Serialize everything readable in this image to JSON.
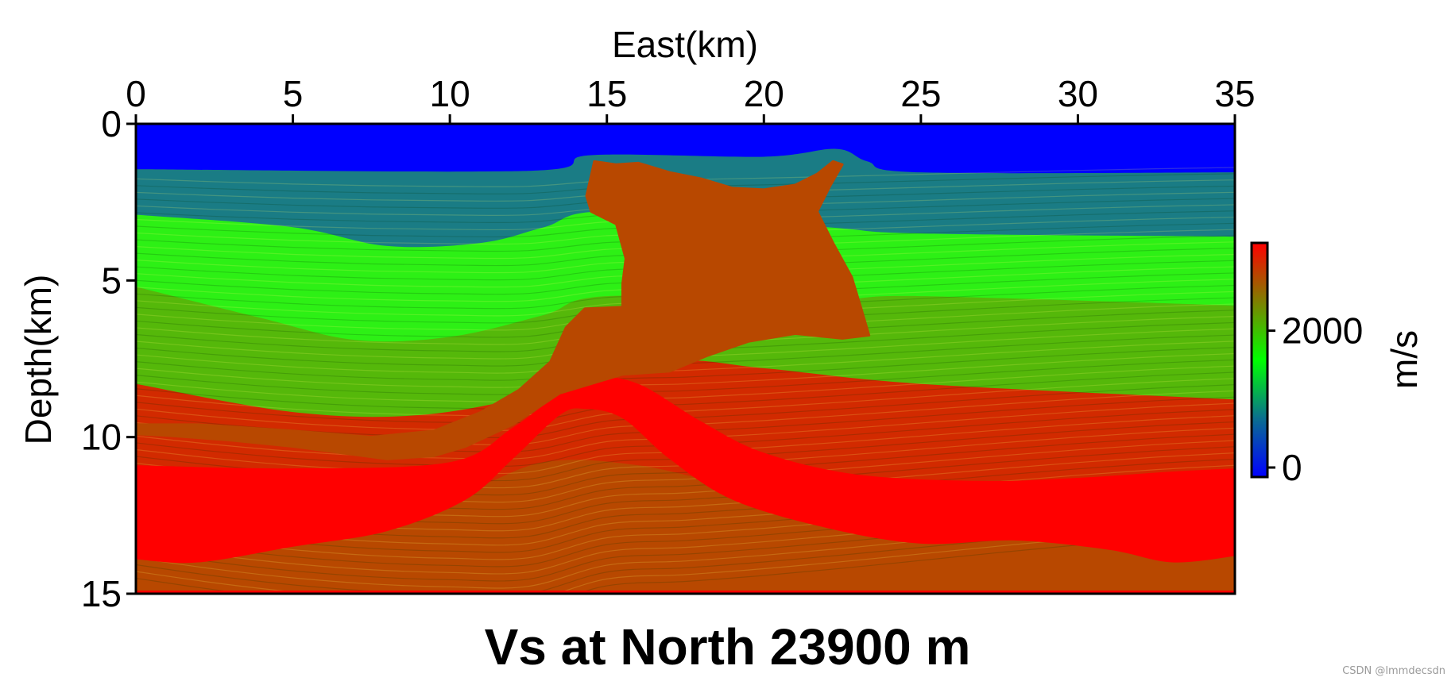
{
  "chart_data": {
    "type": "heatmap",
    "title": "Vs at North 23900 m",
    "xlabel": "East(km)",
    "ylabel": "Depth(km)",
    "xlim": [
      0,
      35
    ],
    "ylim": [
      0,
      15
    ],
    "y_inverted": true,
    "x_axis_position": "top",
    "x_ticks": [
      0,
      5,
      10,
      15,
      20,
      25,
      30,
      35
    ],
    "y_ticks": [
      0,
      5,
      10,
      15
    ],
    "colorbar": {
      "label": "m/s",
      "ticks": [
        0,
        2000
      ],
      "range": [
        0,
        3200
      ],
      "colormap": [
        {
          "value": 0,
          "color": "#0000ff"
        },
        {
          "value": 800,
          "color": "#0a6f90"
        },
        {
          "value": 1600,
          "color": "#00ff00"
        },
        {
          "value": 2400,
          "color": "#7f7f00"
        },
        {
          "value": 3200,
          "color": "#ff0000"
        }
      ]
    },
    "layers": [
      {
        "name_hint": "water",
        "vs": 0,
        "color": "#0000ff",
        "bottom": [
          [
            0,
            1.45
          ],
          [
            12.5,
            1.5
          ],
          [
            14.5,
            1.0
          ],
          [
            20,
            1.05
          ],
          [
            22.3,
            0.8
          ],
          [
            23.3,
            1.2
          ],
          [
            25,
            1.55
          ],
          [
            35,
            1.55
          ]
        ]
      },
      {
        "vs": 900,
        "color": "#1a7c85",
        "bottom": [
          [
            0,
            2.9
          ],
          [
            5,
            3.3
          ],
          [
            8,
            3.9
          ],
          [
            11,
            3.8
          ],
          [
            13,
            3.3
          ],
          [
            15,
            2.8
          ],
          [
            22,
            3.3
          ],
          [
            25,
            3.5
          ],
          [
            35,
            3.6
          ]
        ]
      },
      {
        "vs": 1600,
        "color": "#2df015",
        "bottom": [
          [
            0,
            5.2
          ],
          [
            4,
            6.2
          ],
          [
            7,
            6.9
          ],
          [
            10,
            6.8
          ],
          [
            13,
            6.1
          ],
          [
            15,
            5.5
          ],
          [
            22,
            5.6
          ],
          [
            25,
            5.5
          ],
          [
            35,
            5.8
          ]
        ]
      },
      {
        "vs": 2000,
        "color": "#55b80a",
        "bottom": [
          [
            0,
            8.3
          ],
          [
            5,
            9.2
          ],
          [
            9,
            9.3
          ],
          [
            13,
            8.6
          ],
          [
            17,
            7.6
          ],
          [
            20,
            7.8
          ],
          [
            25,
            8.3
          ],
          [
            35,
            8.8
          ]
        ]
      },
      {
        "vs": 2400,
        "color": "#d22a00",
        "bottom": [
          [
            0,
            11.4
          ],
          [
            5,
            12.0
          ],
          [
            10,
            11.8
          ],
          [
            13,
            10.8
          ],
          [
            16,
            10.9
          ],
          [
            20,
            11.7
          ],
          [
            25,
            11.8
          ],
          [
            30,
            11.6
          ],
          [
            35,
            11.8
          ]
        ]
      }
    ],
    "high_velocity_band": {
      "vs": 3200,
      "color": "#ff0000",
      "top": [
        [
          0,
          10.9
        ],
        [
          5,
          11.0
        ],
        [
          10,
          10.8
        ],
        [
          12,
          9.7
        ],
        [
          13.5,
          8.6
        ],
        [
          14.5,
          8.1
        ],
        [
          16,
          8.3
        ],
        [
          18,
          9.5
        ],
        [
          20,
          10.5
        ],
        [
          23,
          11.2
        ],
        [
          27,
          11.4
        ],
        [
          30,
          11.3
        ],
        [
          33,
          11.1
        ],
        [
          35,
          11.0
        ]
      ],
      "bottom": [
        [
          0,
          13.9
        ],
        [
          2,
          14.0
        ],
        [
          5,
          13.5
        ],
        [
          8,
          13.0
        ],
        [
          10.5,
          12.0
        ],
        [
          12,
          10.7
        ],
        [
          13.5,
          9.3
        ],
        [
          14.3,
          9.1
        ],
        [
          15.5,
          9.4
        ],
        [
          17,
          10.7
        ],
        [
          19,
          12.0
        ],
        [
          22,
          12.9
        ],
        [
          25,
          13.4
        ],
        [
          28,
          13.3
        ],
        [
          31,
          13.6
        ],
        [
          33,
          14.0
        ],
        [
          35,
          13.8
        ]
      ]
    },
    "basement": {
      "vs": 2800,
      "color": "#b84800",
      "top_bottom_km": 15
    },
    "salt_body": {
      "vs": 2800,
      "color": "#b84800",
      "outline": [
        [
          14.6,
          1.2
        ],
        [
          15.3,
          1.3
        ],
        [
          16,
          1.25
        ],
        [
          17,
          1.55
        ],
        [
          18,
          1.75
        ],
        [
          19,
          2.05
        ],
        [
          20,
          2.1
        ],
        [
          21,
          1.95
        ],
        [
          21.7,
          1.6
        ],
        [
          22.2,
          1.2
        ],
        [
          22.5,
          1.3
        ],
        [
          22.1,
          2.0
        ],
        [
          21.7,
          2.8
        ],
        [
          22.2,
          3.8
        ],
        [
          22.8,
          4.9
        ],
        [
          23.1,
          5.9
        ],
        [
          23.35,
          6.75
        ],
        [
          22.5,
          6.85
        ],
        [
          21,
          6.7
        ],
        [
          19.5,
          6.95
        ],
        [
          18.2,
          7.4
        ],
        [
          17,
          7.9
        ],
        [
          15.5,
          8.0
        ],
        [
          13.5,
          8.6
        ],
        [
          12,
          9.6
        ],
        [
          10.5,
          10.3
        ],
        [
          9.5,
          10.6
        ],
        [
          8,
          10.7
        ],
        [
          6.5,
          10.5
        ],
        [
          5,
          10.3
        ],
        [
          3,
          10.1
        ],
        [
          1,
          9.95
        ],
        [
          0,
          9.9
        ],
        [
          0,
          9.6
        ],
        [
          2,
          9.6
        ],
        [
          5,
          9.8
        ],
        [
          7.5,
          10.0
        ],
        [
          9.5,
          9.8
        ],
        [
          11,
          9.2
        ],
        [
          12.2,
          8.5
        ],
        [
          13.2,
          7.6
        ],
        [
          13.7,
          6.5
        ],
        [
          14.3,
          5.9
        ],
        [
          15.5,
          5.85
        ],
        [
          15.5,
          5.1
        ],
        [
          15.6,
          4.3
        ],
        [
          15.3,
          3.2
        ],
        [
          14.5,
          2.8
        ],
        [
          14.35,
          2.3
        ]
      ]
    }
  }
}
